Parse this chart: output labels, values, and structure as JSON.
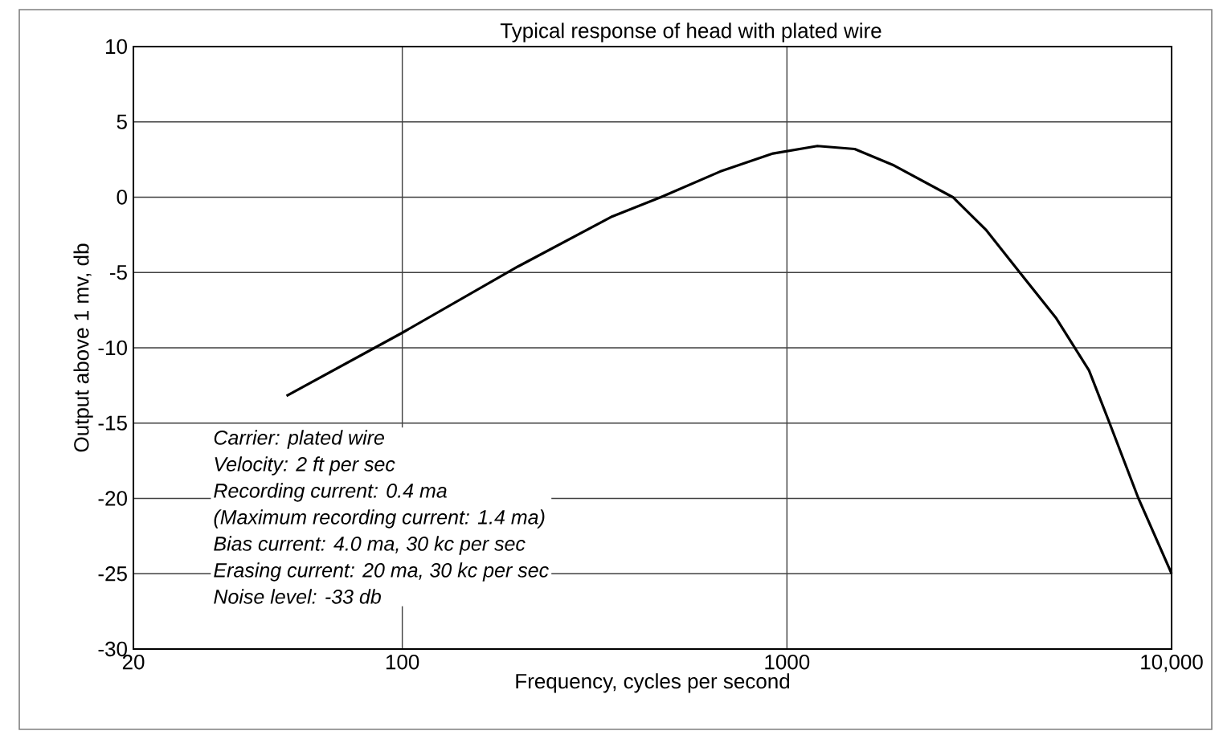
{
  "chart_data": {
    "type": "line",
    "title": "Typical response of head with plated wire",
    "xlabel": "Frequency, cycles per second",
    "ylabel": "Output above 1 mv, db",
    "log": "x",
    "xlim": [
      20,
      10000
    ],
    "ylim": [
      -30,
      10
    ],
    "xticks": [
      20,
      100,
      1000,
      {
        "value": 10000,
        "label": "10,000"
      }
    ],
    "yticks": [
      -30,
      -25,
      -20,
      -15,
      -10,
      -5,
      0,
      5,
      10
    ],
    "grid": true,
    "marker": "none",
    "line_style": "solid",
    "x": [
      50,
      100,
      200,
      350,
      470,
      670,
      920,
      1200,
      1500,
      1900,
      2700,
      3300,
      4000,
      5000,
      6100,
      6900,
      8200,
      10000
    ],
    "series": [
      {
        "color": "#000000",
        "values": [
          -13.2,
          -9,
          -4.6,
          -1.3,
          0,
          1.7,
          2.9,
          3.4,
          3.2,
          2.1,
          0,
          -2.2,
          -4.9,
          -8,
          -11.5,
          -15,
          -20,
          -25
        ]
      }
    ],
    "annotations": [
      "Carrier: plated wire",
      "Velocity: 2 ft per sec",
      "Recording current: 0.4 ma",
      "(Maximum recording current: 1.4 ma)",
      "Bias current: 4.0 ma, 30 kc per sec",
      "Erasing current: 20 ma, 30 kc per sec",
      "Noise level: -33 db"
    ]
  }
}
